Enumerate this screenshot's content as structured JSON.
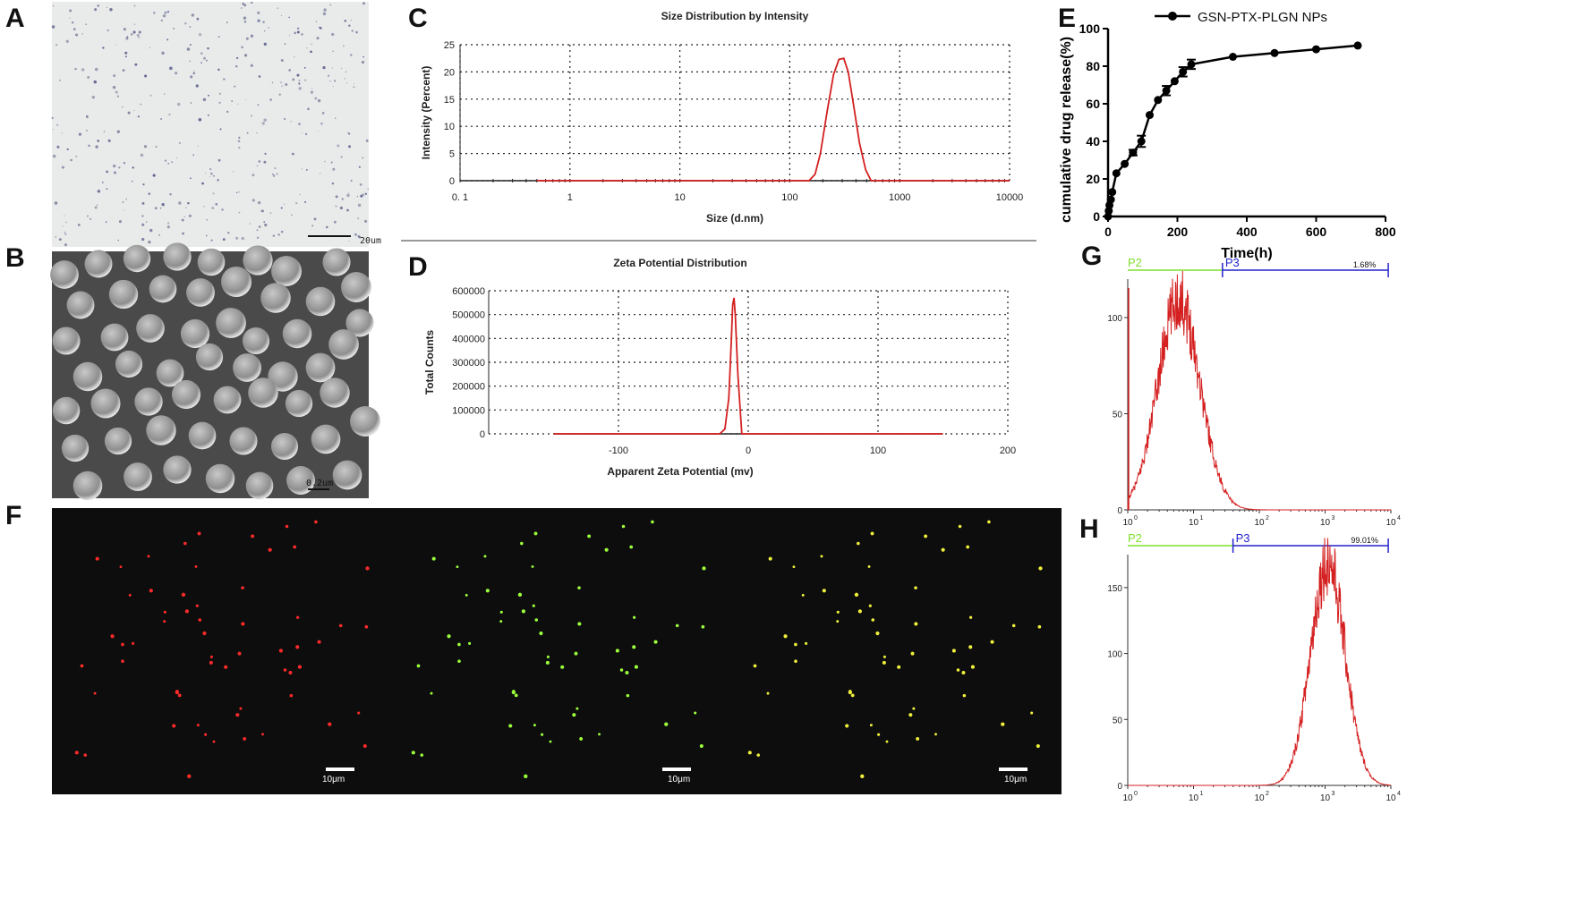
{
  "panels": {
    "A": "A",
    "B": "B",
    "C": "C",
    "D": "D",
    "E": "E",
    "F": "F",
    "G": "G",
    "H": "H"
  },
  "panel_a": {
    "scale_bar": "20um",
    "background": "#e9ebeb"
  },
  "panel_b": {
    "scale_bar": "0.2um",
    "background": "#4a4a4a"
  },
  "panel_f": {
    "scale_bar": "10μm",
    "channel_colors": [
      "#ff2a2a",
      "#9cff3c",
      "#f0f03c"
    ],
    "background": "#0d0d0d"
  },
  "chart_data": [
    {
      "id": "C",
      "type": "line",
      "title": "Size Distribution by Intensity",
      "xlabel": "Size (d.nm)",
      "ylabel": "Intensity (Percent)",
      "x_scale": "log",
      "xlim": [
        0.1,
        10000
      ],
      "ylim": [
        0,
        25
      ],
      "x_ticks": [
        "0. 1",
        "1",
        "10",
        "100",
        "1000",
        "10000"
      ],
      "y_ticks": [
        "0",
        "5",
        "10",
        "15",
        "20",
        "25"
      ],
      "grid": true,
      "color": "#d42020",
      "x": [
        0.5,
        150,
        170,
        190,
        220,
        250,
        280,
        310,
        340,
        380,
        430,
        490,
        550,
        10000
      ],
      "y": [
        0,
        0,
        1.2,
        5,
        13,
        19.5,
        22.3,
        22.5,
        20,
        14,
        7,
        2,
        0,
        0
      ]
    },
    {
      "id": "D",
      "type": "line",
      "title": "Zeta Potential Distribution",
      "xlabel": "Apparent Zeta Potential (mv)",
      "ylabel": "Total Counts",
      "xlim": [
        -200,
        200
      ],
      "ylim": [
        0,
        600000
      ],
      "x_ticks": [
        "-100",
        "0",
        "100",
        "200"
      ],
      "y_ticks": [
        "0",
        "100000",
        "200000",
        "300000",
        "400000",
        "500000",
        "600000"
      ],
      "grid": true,
      "color": "#d42020",
      "x": [
        -150,
        -22,
        -18,
        -15,
        -13,
        -12,
        -11,
        -10,
        -8,
        -5,
        150
      ],
      "y": [
        0,
        0,
        20000,
        150000,
        400000,
        540000,
        570000,
        500000,
        250000,
        0,
        0
      ]
    },
    {
      "id": "E",
      "type": "line",
      "xlabel": "Time(h)",
      "ylabel": "cumulative drug release(%)",
      "xlim": [
        0,
        800
      ],
      "ylim": [
        0,
        100
      ],
      "x_ticks": [
        "0",
        "200",
        "400",
        "600",
        "800"
      ],
      "y_ticks": [
        "0",
        "20",
        "40",
        "60",
        "80",
        "100"
      ],
      "legend": "top-right",
      "series": [
        {
          "name": "GSN-PTX-PLGN NPs",
          "color": "#000000",
          "x": [
            0,
            2,
            4,
            8,
            12,
            24,
            48,
            72,
            96,
            120,
            144,
            168,
            192,
            216,
            240,
            360,
            480,
            600,
            720
          ],
          "y": [
            0,
            3,
            6,
            9,
            13,
            23,
            28,
            34,
            40,
            54,
            62,
            67,
            72,
            77,
            81,
            85,
            87,
            89,
            91
          ],
          "err": [
            0,
            0,
            0,
            0,
            0,
            0,
            0,
            1.5,
            3,
            0,
            0,
            2.5,
            0,
            2.5,
            2.5,
            0,
            0,
            0,
            0
          ]
        }
      ]
    },
    {
      "id": "G",
      "type": "line",
      "x_scale": "log",
      "xlim": [
        1,
        10000
      ],
      "ylim": [
        0,
        120
      ],
      "y_ticks": [
        "0",
        "50",
        "100"
      ],
      "x_ticks": [
        "10",
        "10",
        "10",
        "10",
        "10"
      ],
      "x_tick_exponents": [
        "0",
        "1",
        "2",
        "3",
        "4"
      ],
      "color": "#d42020",
      "gates": [
        {
          "label": "P2",
          "color": "#7ee02a"
        },
        {
          "label": "P3",
          "color": "#2222cc",
          "percent": "1.68%"
        }
      ],
      "peak_x": 6,
      "peak_y": 113
    },
    {
      "id": "H",
      "type": "line",
      "x_scale": "log",
      "xlim": [
        1,
        10000
      ],
      "ylim": [
        0,
        175
      ],
      "y_ticks": [
        "0",
        "50",
        "100",
        "150"
      ],
      "x_ticks": [
        "10",
        "10",
        "10",
        "10",
        "10"
      ],
      "x_tick_exponents": [
        "0",
        "1",
        "2",
        "3",
        "4"
      ],
      "color": "#d42020",
      "gates": [
        {
          "label": "P2",
          "color": "#7ee02a"
        },
        {
          "label": "P3",
          "color": "#2222cc",
          "percent": "99.01%"
        }
      ],
      "peak_x": 1100,
      "peak_y": 175
    }
  ]
}
